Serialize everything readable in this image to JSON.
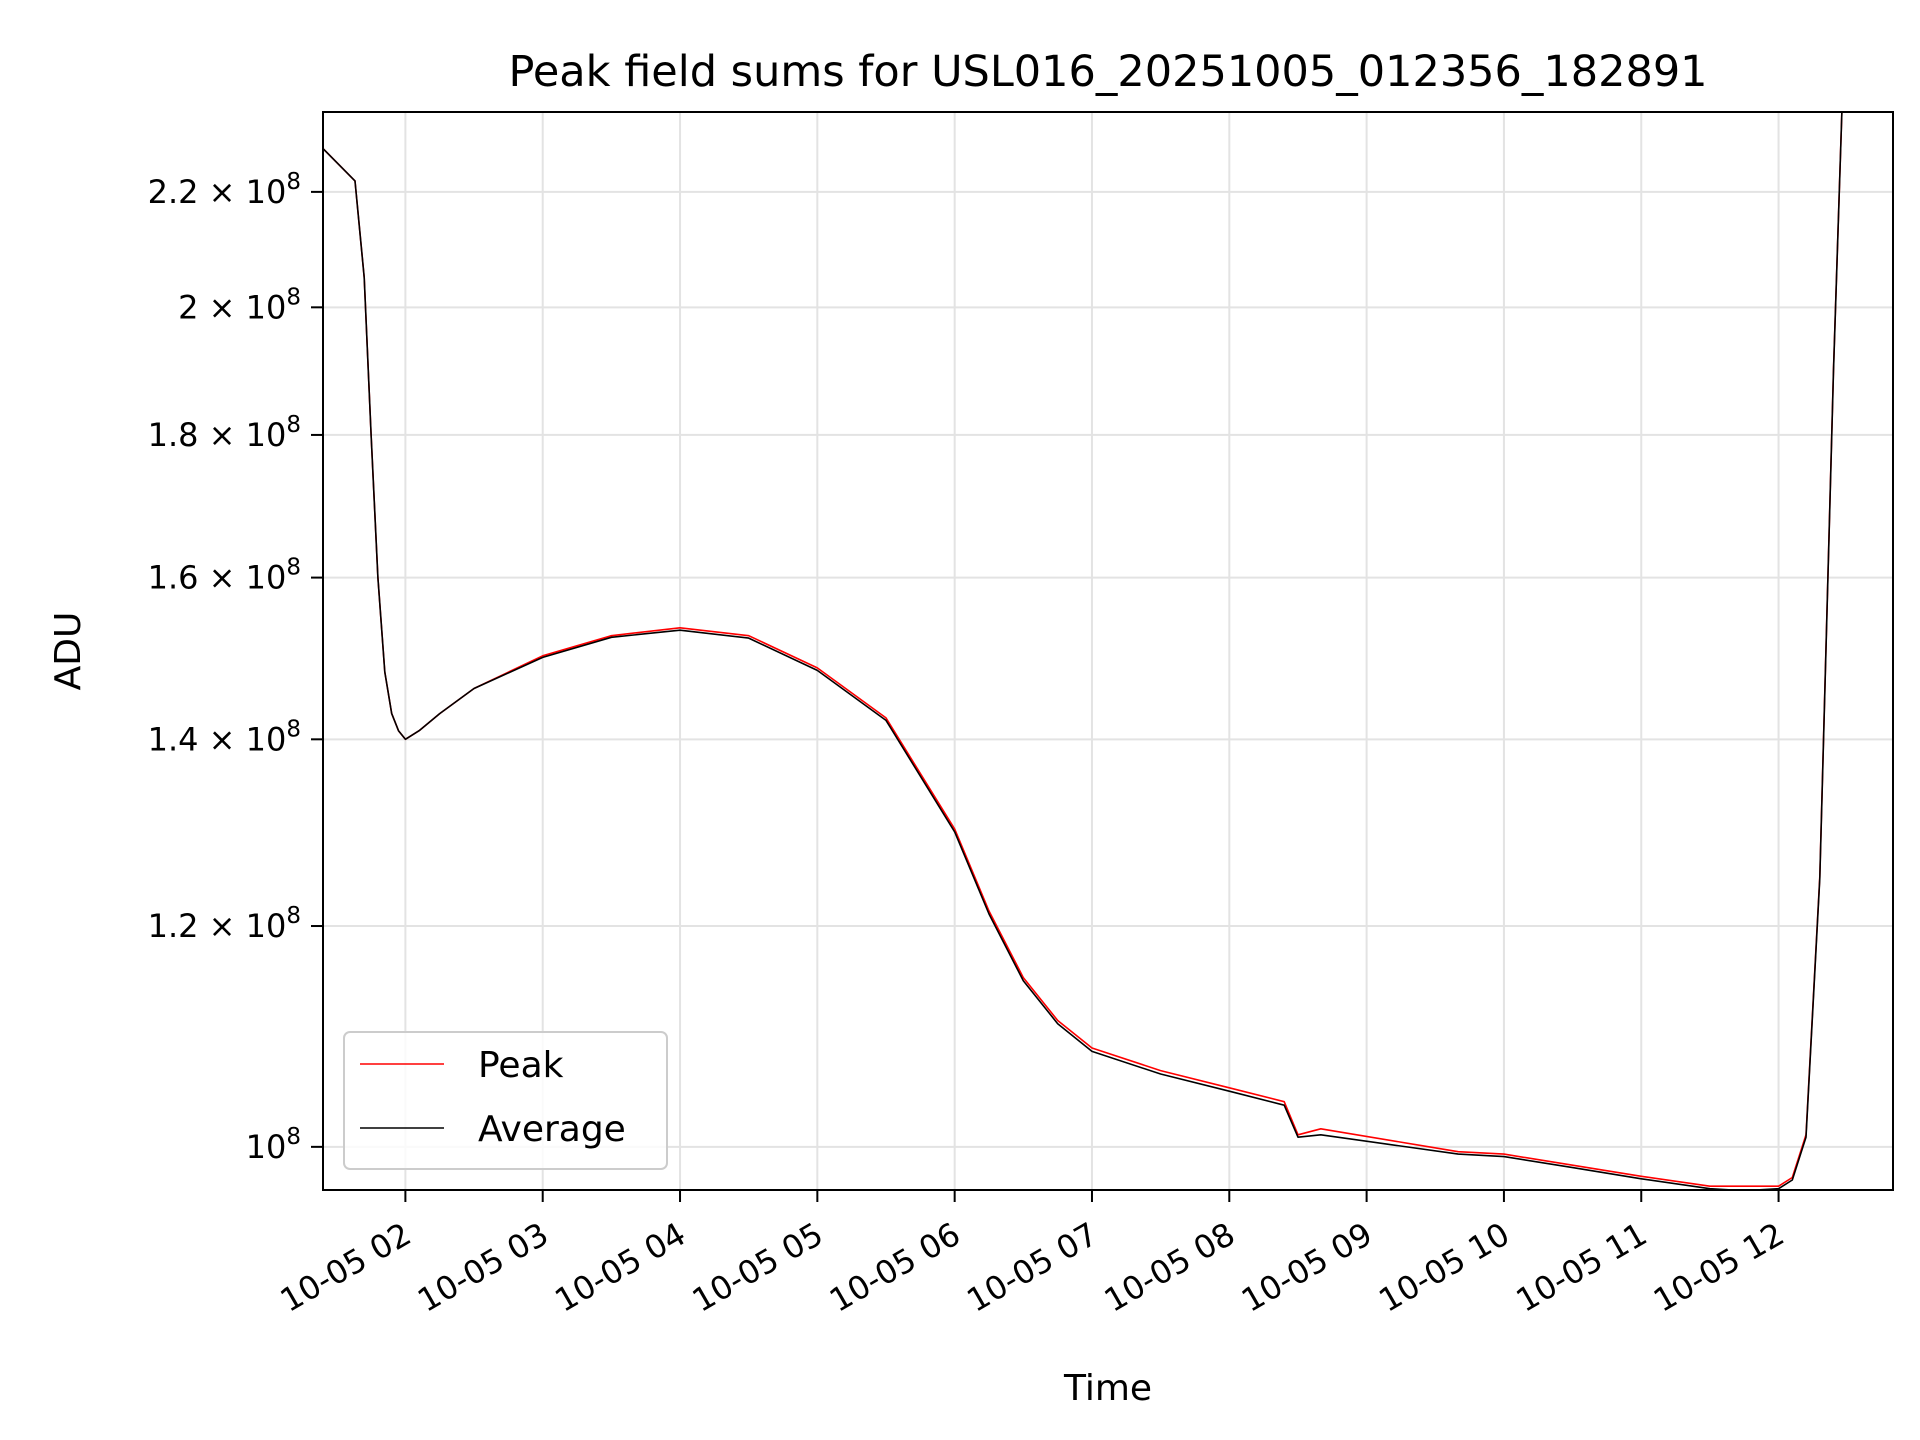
{
  "chart_data": {
    "type": "line",
    "title": "Peak field sums for USL016_20251005_012356_182891",
    "xlabel": "Time",
    "ylabel": "ADU",
    "yscale": "log",
    "grid": true,
    "legend_position": "lower-left",
    "colors": {
      "Peak": "#ff0000",
      "Average": "#000000"
    },
    "xlim": [
      "2025-10-05 01:24",
      "2025-10-05 12:50"
    ],
    "ylim": [
      96500000,
      235000000
    ],
    "x_ticks": [
      "2025-10-05 02:00",
      "2025-10-05 03:00",
      "2025-10-05 04:00",
      "2025-10-05 05:00",
      "2025-10-05 06:00",
      "2025-10-05 07:00",
      "2025-10-05 08:00",
      "2025-10-05 09:00",
      "2025-10-05 10:00",
      "2025-10-05 11:00",
      "2025-10-05 12:00"
    ],
    "x_tick_labels": [
      "10-05 02",
      "10-05 03",
      "10-05 04",
      "10-05 05",
      "10-05 06",
      "10-05 07",
      "10-05 08",
      "10-05 09",
      "10-05 10",
      "10-05 11",
      "10-05 12"
    ],
    "y_ticks": [
      {
        "value": 100000000,
        "mantissa": "",
        "exp": "8"
      },
      {
        "value": 120000000,
        "mantissa": "1.2",
        "exp": "8"
      },
      {
        "value": 140000000,
        "mantissa": "1.4",
        "exp": "8"
      },
      {
        "value": 160000000,
        "mantissa": "1.6",
        "exp": "8"
      },
      {
        "value": 180000000,
        "mantissa": "1.8",
        "exp": "8"
      },
      {
        "value": 200000000,
        "mantissa": "2",
        "exp": "8"
      },
      {
        "value": 220000000,
        "mantissa": "2.2",
        "exp": "8"
      }
    ],
    "x": [
      "2025-10-05 01:24",
      "2025-10-05 01:38",
      "2025-10-05 01:42",
      "2025-10-05 01:45",
      "2025-10-05 01:48",
      "2025-10-05 01:51",
      "2025-10-05 01:54",
      "2025-10-05 01:57",
      "2025-10-05 02:00",
      "2025-10-05 02:06",
      "2025-10-05 02:15",
      "2025-10-05 02:30",
      "2025-10-05 03:00",
      "2025-10-05 03:30",
      "2025-10-05 04:00",
      "2025-10-05 04:30",
      "2025-10-05 05:00",
      "2025-10-05 05:30",
      "2025-10-05 06:00",
      "2025-10-05 06:15",
      "2025-10-05 06:30",
      "2025-10-05 06:45",
      "2025-10-05 07:00",
      "2025-10-05 07:30",
      "2025-10-05 08:00",
      "2025-10-05 08:24",
      "2025-10-05 08:30",
      "2025-10-05 08:40",
      "2025-10-05 09:40",
      "2025-10-05 10:00",
      "2025-10-05 10:30",
      "2025-10-05 11:00",
      "2025-10-05 11:30",
      "2025-10-05 11:40",
      "2025-10-05 11:50",
      "2025-10-05 12:00",
      "2025-10-05 12:06",
      "2025-10-05 12:12",
      "2025-10-05 12:18",
      "2025-10-05 12:24",
      "2025-10-05 12:28"
    ],
    "series": [
      {
        "name": "Peak",
        "values": [
          228000000,
          222000000,
          205000000,
          180000000,
          160000000,
          148000000,
          143000000,
          141000000,
          140000000,
          141000000,
          143000000,
          146000000,
          150000000,
          152500000,
          153500000,
          152500000,
          148500000,
          142500000,
          130000000,
          121500000,
          115000000,
          111000000,
          108500000,
          106500000,
          105000000,
          103800000,
          101000000,
          101500000,
          99600000,
          99400000,
          98500000,
          97600000,
          96800000,
          96800000,
          96800000,
          96800000,
          97500000,
          101000000,
          125000000,
          190000000,
          240000000
        ]
      },
      {
        "name": "Average",
        "values": [
          228000000,
          222000000,
          205000000,
          180000000,
          160000000,
          148000000,
          143000000,
          141000000,
          140000000,
          141000000,
          143000000,
          146000000,
          149800000,
          152300000,
          153200000,
          152200000,
          148200000,
          142200000,
          129700000,
          121200000,
          114700000,
          110700000,
          108200000,
          106200000,
          104700000,
          103500000,
          100800000,
          101000000,
          99400000,
          99200000,
          98300000,
          97400000,
          96600000,
          96500000,
          96500000,
          96600000,
          97300000,
          100800000,
          124800000,
          189800000,
          240000000
        ]
      }
    ]
  }
}
